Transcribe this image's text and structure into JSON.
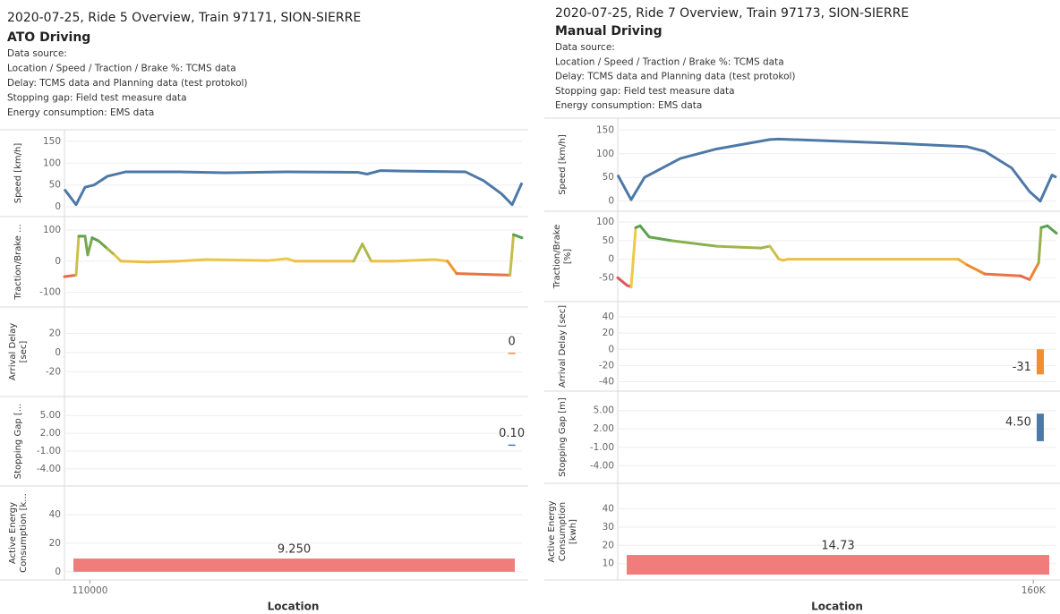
{
  "headers": [
    {
      "title": "2020-07-25, Ride 5 Overview, Train 97171, SION-SIERRE",
      "mode": "ATO Driving",
      "lines": [
        "Data source:",
        "Location / Speed / Traction / Brake %: TCMS data",
        "Delay: TCMS data and Planning data (test protokol)",
        "Stopping gap: Field test measure data",
        "Energy consumption: EMS data"
      ]
    },
    {
      "title": "2020-07-25, Ride 7 Overview, Train 97173, SION-SIERRE",
      "mode": "Manual Driving",
      "lines": [
        "Data source:",
        "Location / Speed / Traction / Brake %: TCMS data",
        "Delay: TCMS data and Planning data (test protokol)",
        "Stopping gap: Field test measure data",
        "Energy consumption: EMS data"
      ]
    }
  ],
  "chart_data": [
    {
      "type": "line",
      "y_label": [
        "Speed [km/h]"
      ],
      "color": "#4e79a7",
      "grid": true,
      "xlim": [
        109000,
        127000
      ],
      "ylim": [
        -10,
        160
      ],
      "yticks": [
        0,
        50,
        100,
        150
      ],
      "x": [
        109000,
        109458,
        109810,
        110163,
        110691,
        111396,
        113510,
        115271,
        117737,
        120556,
        120908,
        121437,
        122317,
        124783,
        125488,
        126192,
        126615,
        127000
      ],
      "values": [
        40,
        5,
        45,
        50,
        70,
        80,
        80,
        78,
        80,
        79,
        75,
        83,
        82,
        80,
        60,
        30,
        5,
        55
      ]
    },
    {
      "type": "line",
      "y_label": [
        "Traction/Brake ..."
      ],
      "grid": true,
      "color_stops": [
        {
          "value": -60,
          "color": "#e15759"
        },
        {
          "value": -25,
          "color": "#f28e2b"
        },
        {
          "value": 5,
          "color": "#edc948"
        },
        {
          "value": 60,
          "color": "#59a14f"
        }
      ],
      "xlim": [
        109000,
        127000
      ],
      "ylim": [
        -130,
        120
      ],
      "yticks": [
        100,
        0,
        -100
      ],
      "x": [
        109000,
        109458,
        109563,
        109810,
        109915,
        110090,
        110340,
        110691,
        110970,
        111220,
        112270,
        113510,
        114560,
        117030,
        117737,
        118080,
        120380,
        120720,
        121070,
        121957,
        123570,
        124070,
        124430,
        126530,
        126670,
        127000
      ],
      "values": [
        -50,
        -45,
        80,
        80,
        20,
        75,
        65,
        40,
        20,
        0,
        -3,
        0,
        5,
        2,
        8,
        0,
        0,
        55,
        0,
        0,
        5,
        0,
        -40,
        -45,
        85,
        75
      ]
    },
    {
      "type": "bar",
      "y_label": [
        "Arrival Delay",
        "[sec]"
      ],
      "color": "#f28e2b",
      "grid": true,
      "xlim": [
        109000,
        127000
      ],
      "ylim": [
        -40,
        40
      ],
      "yticks": [
        20,
        0,
        -20
      ],
      "x": [
        126600
      ],
      "values": [
        0
      ],
      "value_labels": [
        "0"
      ]
    },
    {
      "type": "bar",
      "y_label": [
        "Stopping Gap [..."
      ],
      "color": "#4e79a7",
      "grid": true,
      "xlim": [
        109000,
        127000
      ],
      "ylim": [
        -6,
        7
      ],
      "yticks": [
        {
          "value": 5,
          "label": "5.00"
        },
        {
          "value": 2,
          "label": "2.00"
        },
        {
          "value": -1,
          "label": "-1.00"
        },
        {
          "value": -4,
          "label": "-4.00"
        }
      ],
      "x": [
        126600
      ],
      "values": [
        0.1
      ],
      "value_labels": [
        "0.10"
      ]
    },
    {
      "type": "bar",
      "y_label": [
        "Active Energy",
        "Consumption [k..."
      ],
      "color": "#f07c7c",
      "grid": true,
      "xlim": [
        109000,
        127000
      ],
      "ylim": [
        -2,
        55
      ],
      "yticks": [
        0,
        20,
        40
      ],
      "categories": [
        null
      ],
      "values": [
        9.25
      ],
      "value_labels": [
        "9.250"
      ],
      "x_label": "Location",
      "xticks": [
        110000
      ]
    },
    {
      "type": "line",
      "y_label": [
        "Speed [km/h]"
      ],
      "color": "#4e79a7",
      "grid": true,
      "xlim": [
        142000,
        161000
      ],
      "ylim": [
        -10,
        160
      ],
      "yticks": [
        0,
        50,
        100,
        150
      ],
      "x": [
        142000,
        142580,
        143160,
        144710,
        146270,
        148590,
        148980,
        154020,
        157120,
        157900,
        159060,
        159840,
        160300,
        160810,
        161000
      ],
      "values": [
        55,
        3,
        50,
        90,
        110,
        130,
        131,
        122,
        115,
        105,
        70,
        20,
        0,
        55,
        50
      ]
    },
    {
      "type": "line",
      "y_label": [
        "Traction/Brake",
        "[%]"
      ],
      "grid": true,
      "color_stops": [
        {
          "value": -60,
          "color": "#e15759"
        },
        {
          "value": -25,
          "color": "#f28e2b"
        },
        {
          "value": 5,
          "color": "#edc948"
        },
        {
          "value": 60,
          "color": "#59a14f"
        }
      ],
      "xlim": [
        142000,
        161000
      ],
      "ylim": [
        -100,
        110
      ],
      "yticks": [
        100,
        50,
        0,
        -50
      ],
      "x": [
        142000,
        142390,
        142580,
        142780,
        142970,
        143360,
        144330,
        146270,
        148200,
        148590,
        148980,
        149170,
        149370,
        156740,
        157120,
        157900,
        159450,
        159840,
        160230,
        160340,
        160610,
        161000
      ],
      "values": [
        -50,
        -70,
        -75,
        85,
        90,
        60,
        50,
        35,
        30,
        35,
        0,
        -3,
        0,
        0,
        -15,
        -40,
        -45,
        -55,
        -10,
        85,
        90,
        70
      ]
    },
    {
      "type": "bar",
      "y_label": [
        "Arrival Delay [sec]"
      ],
      "color": "#f28e2b",
      "grid": true,
      "xlim": [
        142000,
        161000
      ],
      "ylim": [
        -45,
        50
      ],
      "yticks": [
        40,
        20,
        0,
        -20,
        -40
      ],
      "x": [
        160300
      ],
      "values": [
        -31
      ],
      "value_labels": [
        "-31"
      ]
    },
    {
      "type": "bar",
      "y_label": [
        "Stopping Gap [m]"
      ],
      "color": "#4e79a7",
      "grid": true,
      "xlim": [
        142000,
        161000
      ],
      "ylim": [
        -6,
        7
      ],
      "yticks": [
        {
          "value": 5,
          "label": "5.00"
        },
        {
          "value": 2,
          "label": "2.00"
        },
        {
          "value": -1,
          "label": "-1.00"
        },
        {
          "value": -4,
          "label": "-4.00"
        }
      ],
      "x": [
        160300
      ],
      "values": [
        4.5
      ],
      "value_labels": [
        "4.50"
      ]
    },
    {
      "type": "bar",
      "y_label": [
        "Active Energy",
        "Consumption",
        "[kwh]"
      ],
      "color": "#f07c7c",
      "grid": true,
      "xlim": [
        142000,
        161000
      ],
      "ylim": [
        4,
        50
      ],
      "yticks": [
        10,
        20,
        30,
        40
      ],
      "categories": [
        null
      ],
      "values": [
        14.73
      ],
      "value_labels": [
        "14.73"
      ],
      "x_label": "Location",
      "xticks": [
        {
          "value": 160000,
          "label": "160K"
        }
      ]
    }
  ]
}
